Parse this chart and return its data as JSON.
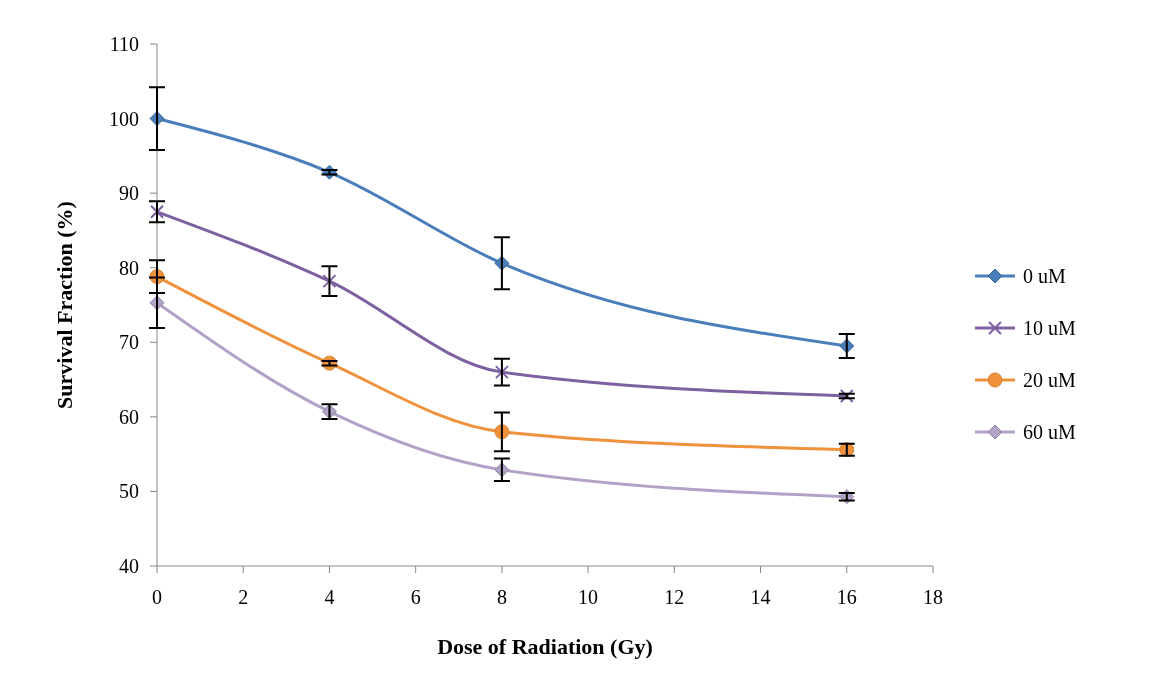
{
  "chart_data": {
    "type": "line",
    "xlabel": "Dose of Radiation (Gy)",
    "ylabel": "Survival Fraction (%)",
    "x": [
      0,
      4,
      8,
      16
    ],
    "series": [
      {
        "name": "0 uM",
        "color": "#4a7ebb",
        "marker": "diamond",
        "values": [
          100,
          92.8,
          80.6,
          69.5
        ],
        "errors": [
          4.2,
          0.3,
          3.5,
          1.6
        ]
      },
      {
        "name": "10 uM",
        "color": "#7d60a0",
        "marker": "cross",
        "values": [
          87.5,
          78.2,
          66.0,
          62.8
        ],
        "errors": [
          1.4,
          2.0,
          1.8,
          0.3
        ]
      },
      {
        "name": "20 uM",
        "color": "#f0923b",
        "marker": "circle",
        "values": [
          78.8,
          67.2,
          58.0,
          55.6
        ],
        "errors": [
          2.2,
          0.3,
          2.6,
          0.8
        ]
      },
      {
        "name": "60 uM",
        "color": "#b3a2c7",
        "marker": "diamond",
        "values": [
          75.3,
          60.7,
          52.9,
          49.3
        ],
        "errors": [
          3.4,
          1.0,
          1.5,
          0.5
        ]
      }
    ],
    "xlim": [
      0,
      18
    ],
    "xticks": [
      0,
      2,
      4,
      6,
      8,
      10,
      12,
      14,
      16,
      18
    ],
    "ylim": [
      40,
      110
    ],
    "yticks": [
      40,
      50,
      60,
      70,
      80,
      90,
      100,
      110
    ],
    "grid": false,
    "legend": "right"
  }
}
